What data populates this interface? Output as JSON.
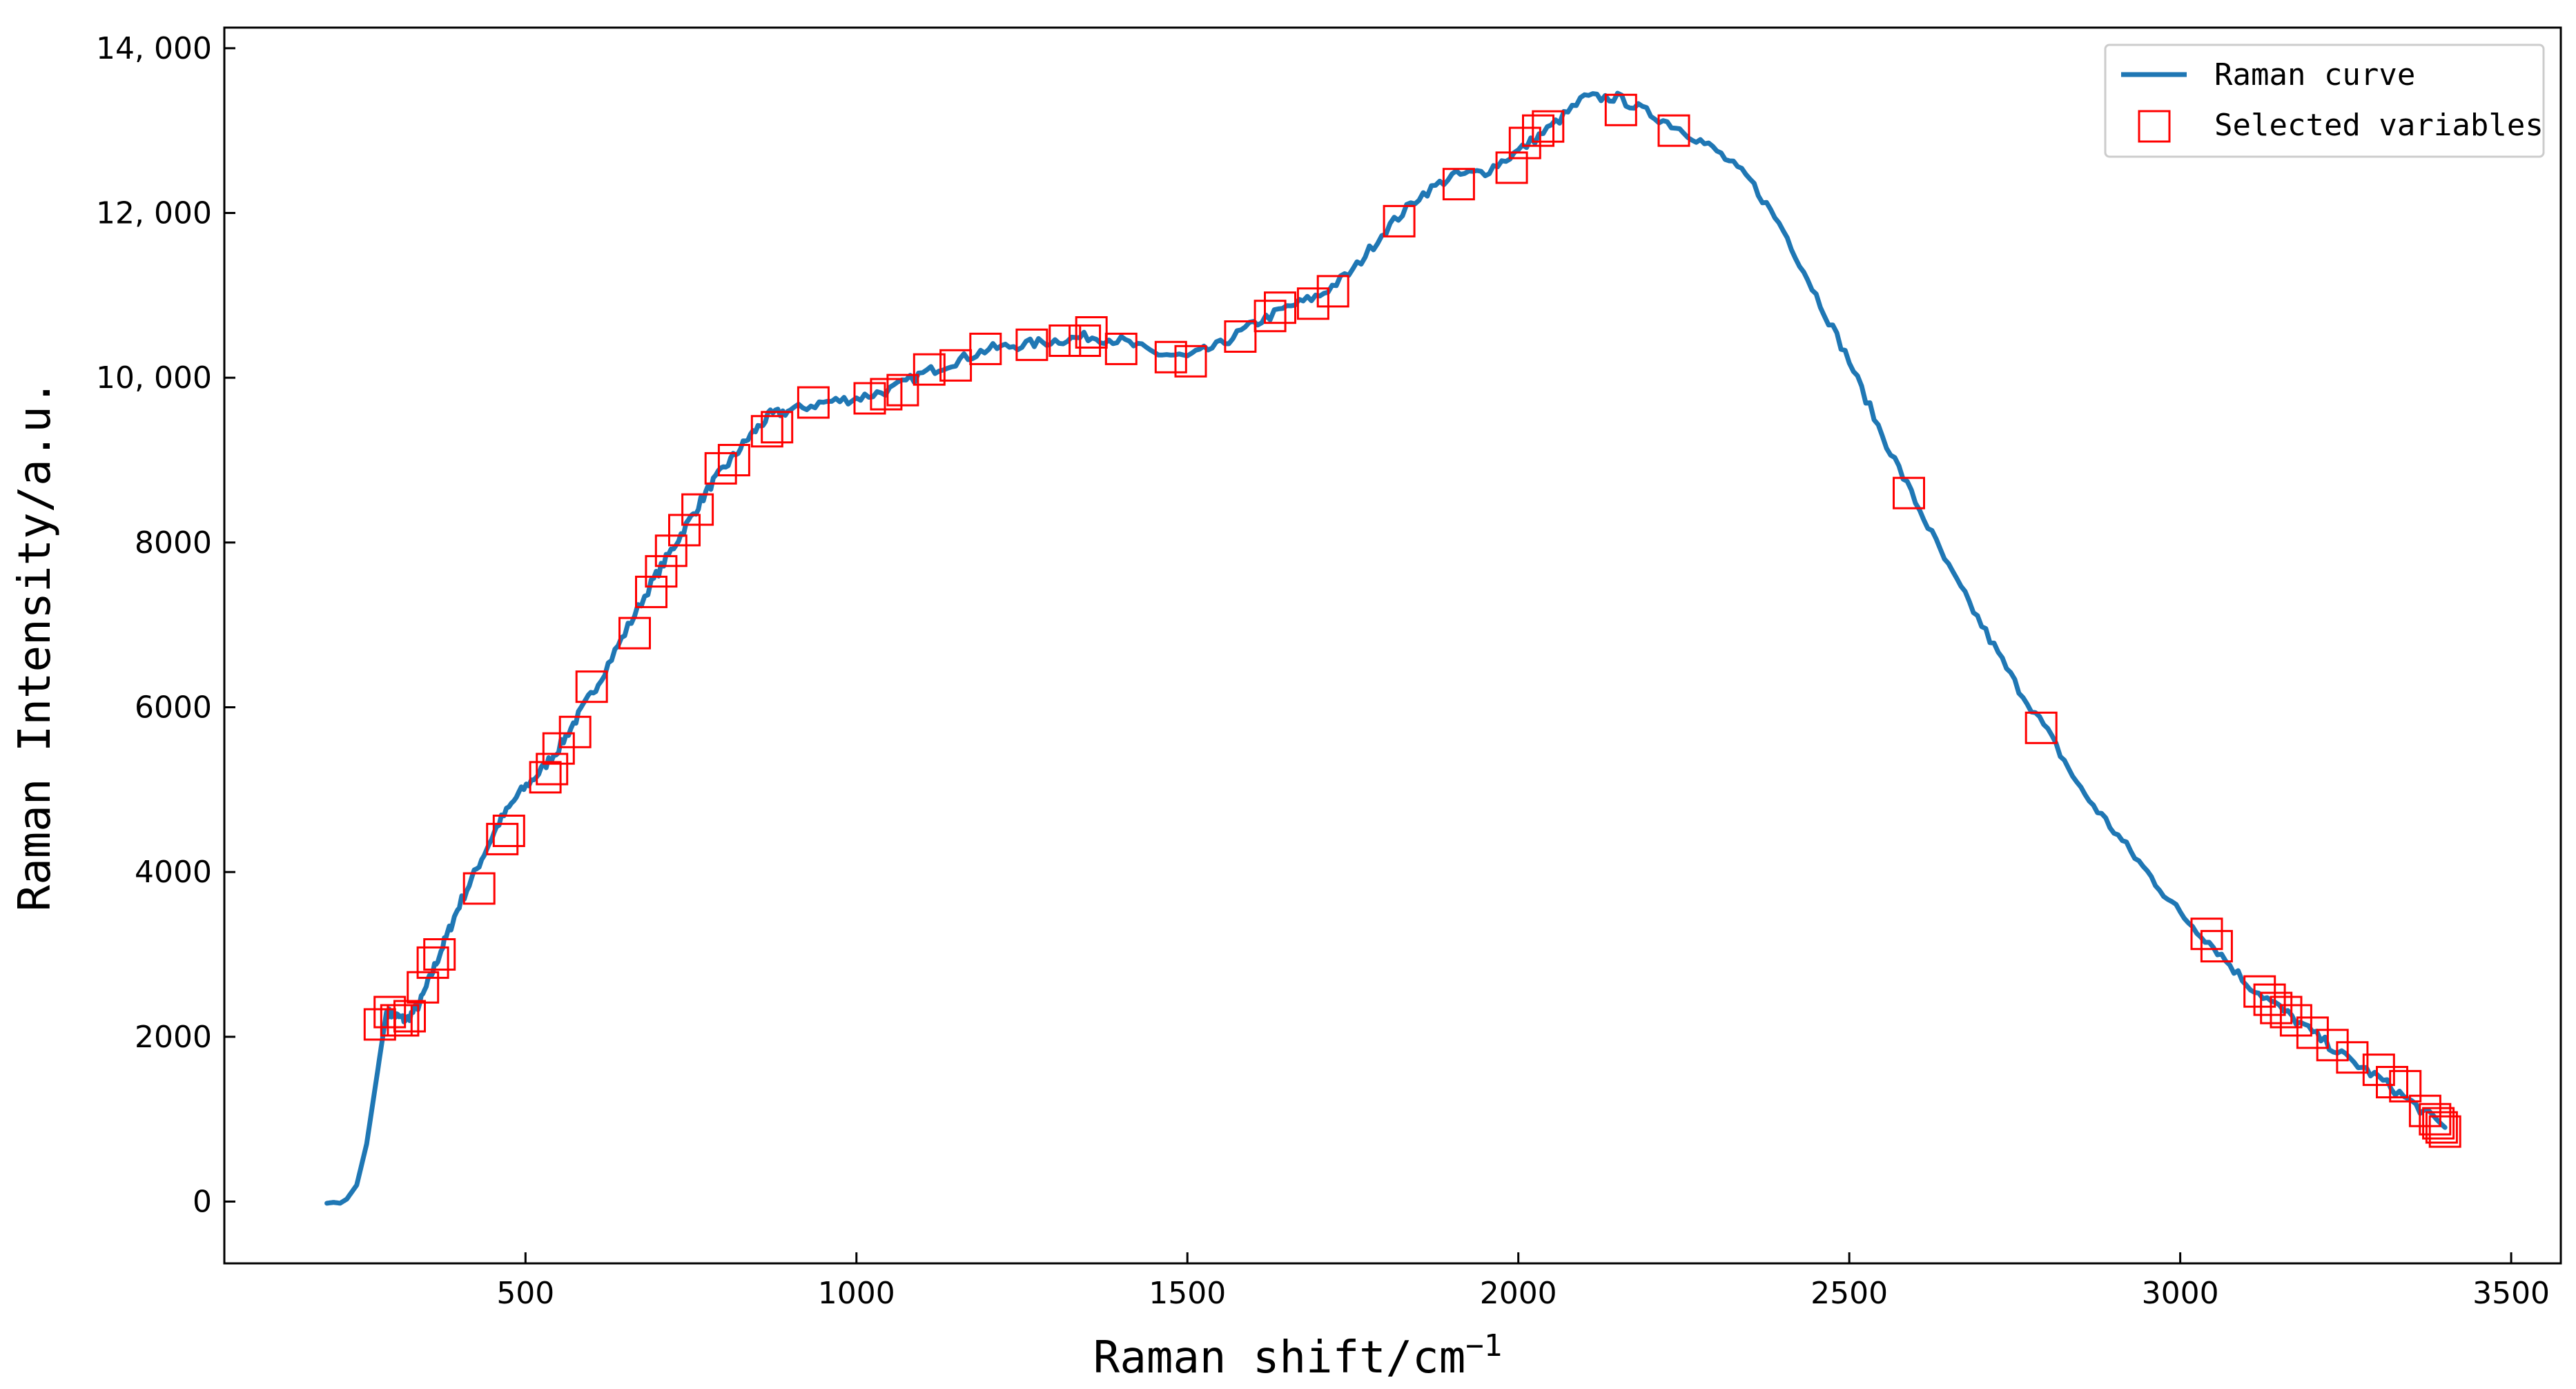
{
  "chart_data": {
    "type": "line",
    "xlabel": "Raman shift/cm",
    "xlabel_superscript": "−1",
    "ylabel": "Raman Intensity/a.u.",
    "xlim": [
      45,
      3575
    ],
    "ylim": [
      -750,
      14250
    ],
    "x_ticks": [
      500,
      1000,
      1500,
      2000,
      2500,
      3000,
      3500
    ],
    "x_tick_labels": [
      "500",
      "1000",
      "1500",
      "2000",
      "2500",
      "3000",
      "3500"
    ],
    "y_ticks": [
      0,
      2000,
      4000,
      6000,
      8000,
      10000,
      12000,
      14000
    ],
    "y_tick_labels": [
      "0",
      "2000",
      "4000",
      "6000",
      "8000",
      "10, 000",
      "12, 000",
      "14, 000"
    ],
    "grid": false,
    "legend_position": "top-right",
    "series": [
      {
        "name": "Raman curve",
        "kind": "line",
        "color": "#1f77b4",
        "x": [
          200,
          210,
          220,
          230,
          245,
          260,
          275,
          290,
          305,
          320,
          340,
          360,
          380,
          400,
          430,
          460,
          490,
          520,
          550,
          580,
          610,
          650,
          690,
          720,
          750,
          780,
          810,
          840,
          870,
          900,
          950,
          1000,
          1050,
          1100,
          1150,
          1200,
          1250,
          1300,
          1350,
          1400,
          1450,
          1500,
          1550,
          1600,
          1650,
          1700,
          1750,
          1800,
          1850,
          1900,
          1950,
          2000,
          2050,
          2100,
          2150,
          2200,
          2250,
          2300,
          2350,
          2400,
          2450,
          2500,
          2550,
          2600,
          2650,
          2700,
          2750,
          2800,
          2850,
          2900,
          2950,
          3000,
          3050,
          3100,
          3150,
          3200,
          3250,
          3300,
          3350,
          3400
        ],
        "y": [
          -20,
          -10,
          -20,
          30,
          200,
          700,
          1500,
          2300,
          2250,
          2200,
          2400,
          2800,
          3200,
          3600,
          4100,
          4600,
          4950,
          5200,
          5500,
          5900,
          6300,
          6900,
          7500,
          7900,
          8300,
          8700,
          9000,
          9300,
          9550,
          9600,
          9700,
          9750,
          9850,
          10050,
          10200,
          10350,
          10400,
          10450,
          10500,
          10450,
          10300,
          10250,
          10400,
          10650,
          10850,
          11000,
          11300,
          11800,
          12200,
          12450,
          12500,
          12750,
          13050,
          13400,
          13400,
          13200,
          13000,
          12750,
          12400,
          11800,
          11000,
          10200,
          9300,
          8500,
          7700,
          7000,
          6300,
          5700,
          5000,
          4500,
          4000,
          3500,
          3100,
          2650,
          2350,
          2050,
          1750,
          1500,
          1200,
          900
        ]
      },
      {
        "name": "Selected variables",
        "kind": "scatter",
        "marker": "square-open",
        "color": "#ff0000",
        "x": [
          280,
          295,
          305,
          315,
          325,
          345,
          360,
          370,
          430,
          465,
          475,
          530,
          540,
          550,
          575,
          600,
          665,
          690,
          705,
          720,
          740,
          760,
          795,
          815,
          865,
          880,
          935,
          1020,
          1045,
          1070,
          1110,
          1150,
          1195,
          1265,
          1315,
          1345,
          1355,
          1400,
          1475,
          1505,
          1580,
          1625,
          1640,
          1690,
          1720,
          1820,
          1910,
          1990,
          2010,
          2030,
          2045,
          2155,
          2235,
          2590,
          2790,
          3040,
          3055,
          3120,
          3135,
          3145,
          3160,
          3175,
          3200,
          3230,
          3260,
          3300,
          3320,
          3340,
          3370,
          3385,
          3390,
          3395,
          3400
        ],
        "y": [
          2150,
          2300,
          2200,
          2200,
          2250,
          2600,
          2900,
          3000,
          3800,
          4400,
          4500,
          5150,
          5250,
          5500,
          5700,
          6250,
          6900,
          7400,
          7650,
          7900,
          8150,
          8400,
          8900,
          9000,
          9350,
          9400,
          9700,
          9750,
          9800,
          9850,
          10100,
          10150,
          10350,
          10400,
          10450,
          10450,
          10550,
          10350,
          10250,
          10200,
          10500,
          10750,
          10850,
          10900,
          11050,
          11900,
          12350,
          12550,
          12850,
          13000,
          13050,
          13250,
          13000,
          8600,
          5750,
          3250,
          3100,
          2550,
          2450,
          2350,
          2300,
          2200,
          2050,
          1900,
          1750,
          1600,
          1450,
          1400,
          1100,
          1000,
          950,
          900,
          850
        ]
      }
    ]
  }
}
